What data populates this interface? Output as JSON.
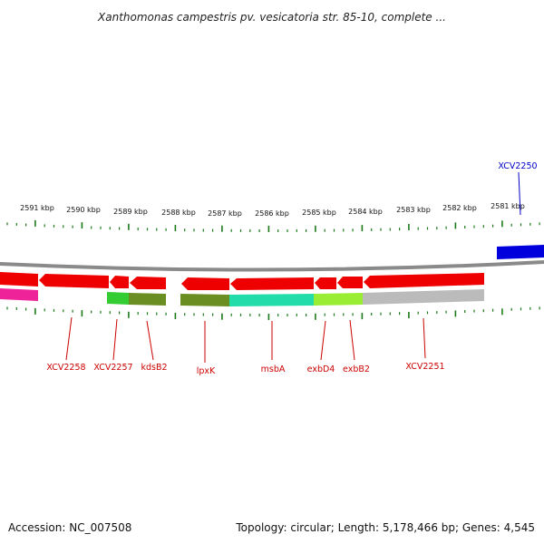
{
  "title": "Xanthomonas campestris pv. vesicatoria str. 85-10, complete ...",
  "footer": {
    "accession": "Accession: NC_007508",
    "summary": "Topology: circular; Length: 5,178,466 bp; Genes: 4,545"
  },
  "scale": {
    "kbp_labels": [
      "2591 kbp",
      "2590 kbp",
      "2589 kbp",
      "2588 kbp",
      "2587 kbp",
      "2586 kbp",
      "2585 kbp",
      "2584 kbp",
      "2583 kbp",
      "2582 kbp",
      "2581 kbp"
    ]
  },
  "colors": {
    "forward_strand": "#ee0000",
    "backbone": "#888888",
    "tick": "#1a7a1a",
    "reverse_label": "#cc0000",
    "forward_label": "#0000cc",
    "forward_feature": "#0000dd",
    "magenta_feature": "#ee2299"
  },
  "gene_labels": [
    {
      "name": "XCV2258",
      "color": "#cc0000"
    },
    {
      "name": "XCV2257",
      "color": "#cc0000"
    },
    {
      "name": "kdsB2",
      "color": "#cc0000"
    },
    {
      "name": "lpxK",
      "color": "#cc0000"
    },
    {
      "name": "msbA",
      "color": "#cc0000"
    },
    {
      "name": "exbD4",
      "color": "#cc0000"
    },
    {
      "name": "exbB2",
      "color": "#cc0000"
    },
    {
      "name": "XCV2251",
      "color": "#cc0000"
    },
    {
      "name": "XCV2250",
      "color": "#0000cc"
    }
  ],
  "category_colors": [
    "#33cc33",
    "#6b8e23",
    "#6b8e23",
    "#22ddaa",
    "#22ddaa",
    "#99ee33",
    "#99ee33",
    "#bbbbbb",
    "#bbbbbb"
  ]
}
